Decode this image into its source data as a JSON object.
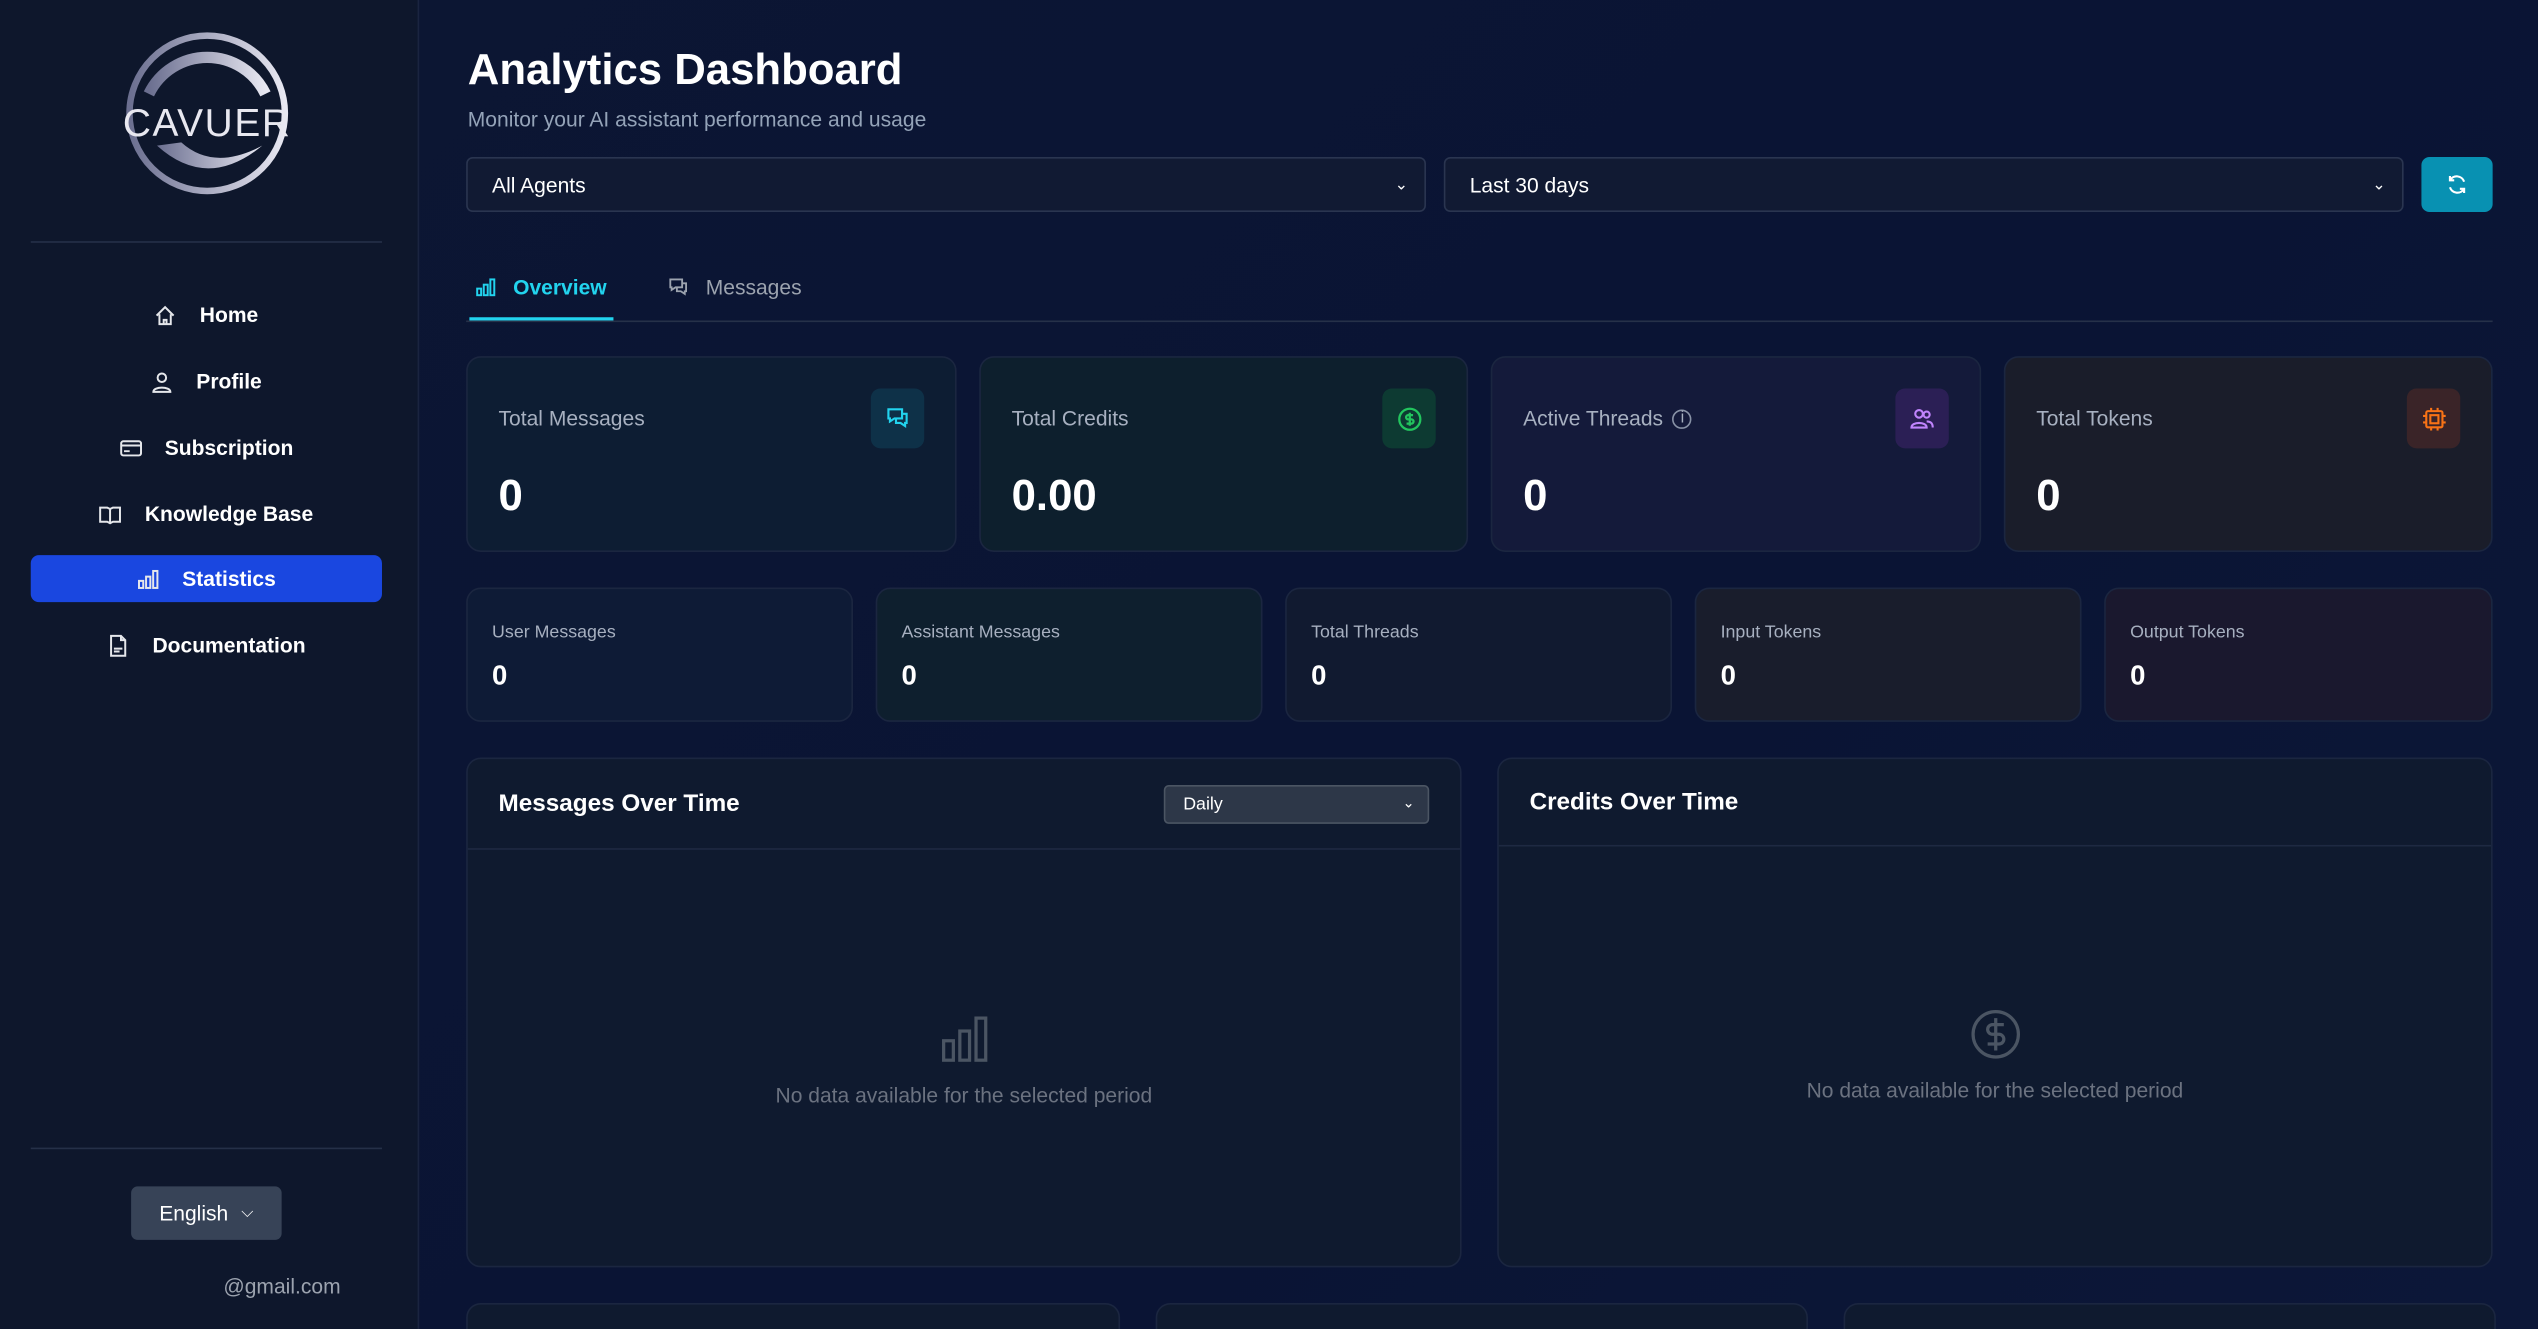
{
  "brand": {
    "logo_text": "CAVUER"
  },
  "sidebar": {
    "items": [
      {
        "label": "Home",
        "icon": "home-icon"
      },
      {
        "label": "Profile",
        "icon": "user-icon"
      },
      {
        "label": "Subscription",
        "icon": "credit-card-icon"
      },
      {
        "label": "Knowledge Base",
        "icon": "book-icon"
      },
      {
        "label": "Statistics",
        "icon": "bar-chart-icon",
        "active": true
      },
      {
        "label": "Documentation",
        "icon": "file-icon"
      }
    ],
    "language": "English",
    "email": "@gmail.com"
  },
  "header": {
    "title": "Analytics Dashboard",
    "subtitle": "Monitor your AI assistant performance and usage"
  },
  "filters": {
    "agent": "All Agents",
    "period": "Last 30 days"
  },
  "tabs": [
    {
      "label": "Overview",
      "active": true
    },
    {
      "label": "Messages"
    }
  ],
  "stats": [
    {
      "label": "Total Messages",
      "value": "0",
      "color": "#22d3ee"
    },
    {
      "label": "Total Credits",
      "value": "0.00",
      "color": "#22c55e"
    },
    {
      "label": "Active Threads",
      "value": "0",
      "color": "#c084fc"
    },
    {
      "label": "Total Tokens",
      "value": "0",
      "color": "#f97316"
    }
  ],
  "sub_stats": [
    {
      "label": "User Messages",
      "value": "0"
    },
    {
      "label": "Assistant Messages",
      "value": "0"
    },
    {
      "label": "Total Threads",
      "value": "0"
    },
    {
      "label": "Input Tokens",
      "value": "0"
    },
    {
      "label": "Output Tokens",
      "value": "0"
    }
  ],
  "panels": {
    "messages": {
      "title": "Messages Over Time",
      "interval": "Daily",
      "empty": "No data available for the selected period"
    },
    "credits": {
      "title": "Credits Over Time",
      "empty": "No data available for the selected period"
    }
  }
}
